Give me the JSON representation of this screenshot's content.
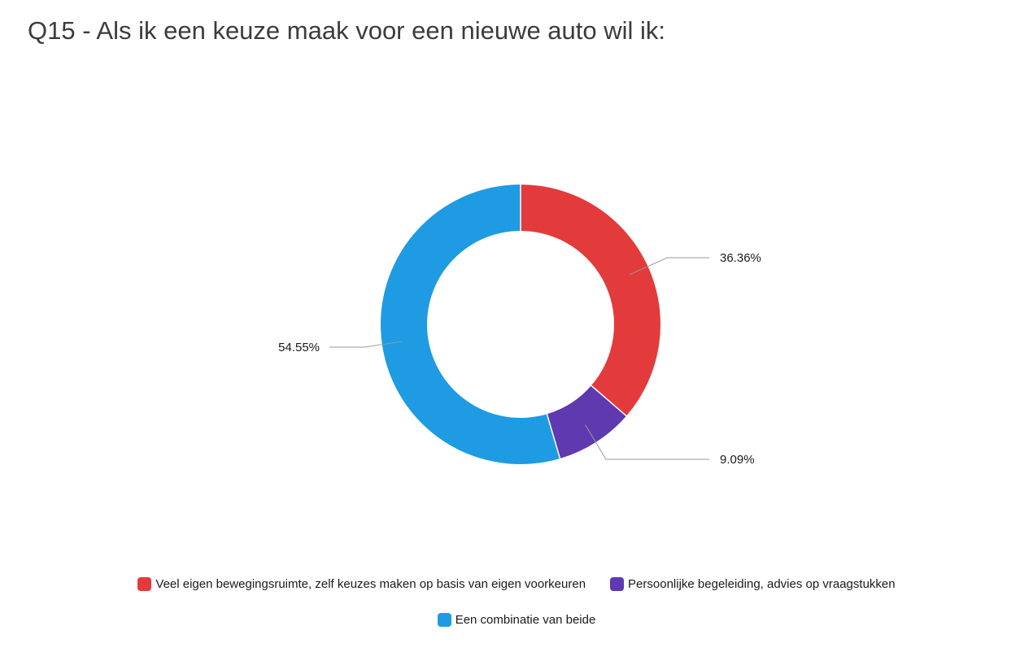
{
  "title": "Q15 - Als ik een keuze maak voor een nieuwe auto wil ik:",
  "chart_data": {
    "type": "pie",
    "donut": true,
    "title": "Q15 - Als ik een keuze maak voor een nieuwe auto wil ik:",
    "categories": [
      "Veel eigen bewegingsruimte, zelf keuzes maken op basis van eigen voorkeuren",
      "Persoonlijke begeleiding, advies op vraagstukken",
      "Een combinatie van beide"
    ],
    "values": [
      36.36,
      9.09,
      54.55
    ],
    "value_labels": [
      "36.36%",
      "9.09%",
      "54.55%"
    ],
    "colors": [
      "#e33b3b",
      "#5e39b0",
      "#1e9be3"
    ],
    "legend_position": "bottom"
  },
  "legend": {
    "items": [
      {
        "label": "Veel eigen bewegingsruimte, zelf keuzes maken op basis van eigen voorkeuren",
        "color": "#e33b3b"
      },
      {
        "label": "Persoonlijke begeleiding, advies op vraagstukken",
        "color": "#5e39b0"
      },
      {
        "label": "Een combinatie van beide",
        "color": "#1e9be3"
      }
    ]
  }
}
